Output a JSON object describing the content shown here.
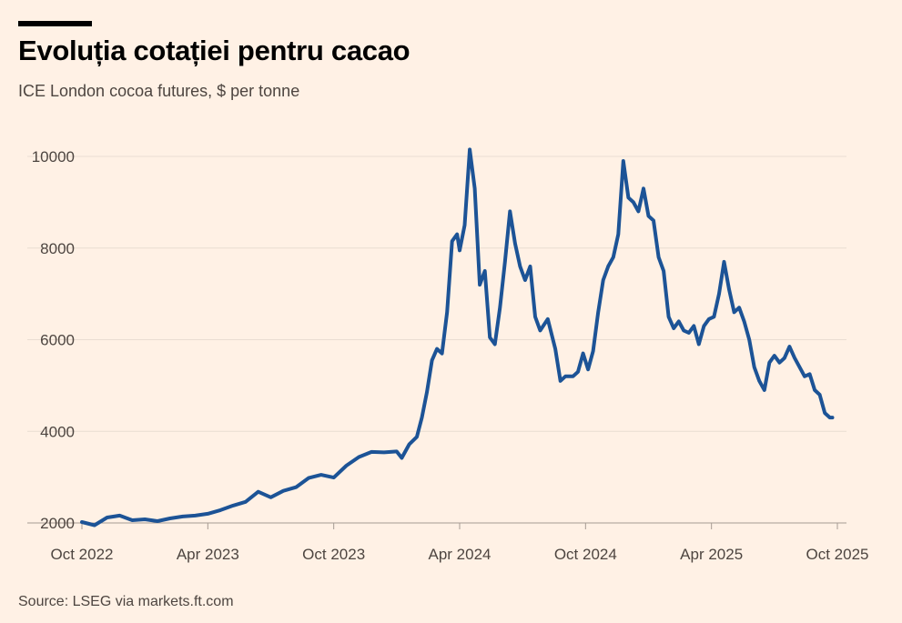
{
  "title": "Evoluția cotației pentru cacao",
  "subtitle": "ICE London cocoa futures, $ per tonne",
  "source": "Source: LSEG via markets.ft.com",
  "colors": {
    "background": "#fff1e5",
    "line": "#1c5396",
    "grid": "#e9ddd2",
    "text": "#4d4540"
  },
  "chart_data": {
    "type": "line",
    "title": "Evoluția cotației pentru cacao",
    "ylabel": "$ per tonne",
    "xlabel": "",
    "ylim": [
      2000,
      10000
    ],
    "xlim": [
      2022.75,
      2025.75
    ],
    "grid": true,
    "y_ticks": [
      10000,
      8000,
      6000,
      4000,
      2000
    ],
    "y_tick_labels": [
      "10000",
      "8000",
      "6000",
      "4000",
      "2000"
    ],
    "x_ticks": [
      2022.75,
      2023.25,
      2023.75,
      2024.25,
      2024.75,
      2025.25,
      2025.75
    ],
    "x_tick_labels": [
      "Oct 2022",
      "Apr 2023",
      "Oct 2023",
      "Apr 2024",
      "Oct 2024",
      "Apr 2025",
      "Oct 2025"
    ],
    "series": [
      {
        "name": "ICE London cocoa futures",
        "x": [
          2022.75,
          2022.8,
          2022.85,
          2022.9,
          2022.95,
          2023.0,
          2023.05,
          2023.1,
          2023.15,
          2023.2,
          2023.25,
          2023.3,
          2023.35,
          2023.4,
          2023.45,
          2023.5,
          2023.55,
          2023.6,
          2023.65,
          2023.7,
          2023.75,
          2023.8,
          2023.85,
          2023.9,
          2023.95,
          2024.0,
          2024.02,
          2024.05,
          2024.08,
          2024.1,
          2024.12,
          2024.14,
          2024.16,
          2024.18,
          2024.2,
          2024.22,
          2024.24,
          2024.25,
          2024.27,
          2024.29,
          2024.31,
          2024.33,
          2024.35,
          2024.37,
          2024.39,
          2024.41,
          2024.43,
          2024.45,
          2024.47,
          2024.49,
          2024.51,
          2024.53,
          2024.55,
          2024.57,
          2024.6,
          2024.63,
          2024.65,
          2024.67,
          2024.7,
          2024.72,
          2024.74,
          2024.76,
          2024.78,
          2024.8,
          2024.82,
          2024.84,
          2024.86,
          2024.88,
          2024.9,
          2024.92,
          2024.94,
          2024.96,
          2024.98,
          2025.0,
          2025.02,
          2025.04,
          2025.06,
          2025.08,
          2025.1,
          2025.12,
          2025.14,
          2025.16,
          2025.18,
          2025.2,
          2025.22,
          2025.24,
          2025.26,
          2025.28,
          2025.3,
          2025.32,
          2025.34,
          2025.36,
          2025.38,
          2025.4,
          2025.42,
          2025.44,
          2025.46,
          2025.48,
          2025.5,
          2025.52,
          2025.54,
          2025.56,
          2025.58,
          2025.6,
          2025.62,
          2025.64,
          2025.66,
          2025.68,
          2025.7,
          2025.72,
          2025.73
        ],
        "values": [
          2020,
          1950,
          2120,
          2160,
          2060,
          2080,
          2040,
          2100,
          2140,
          2160,
          2200,
          2280,
          2380,
          2460,
          2680,
          2560,
          2700,
          2780,
          2980,
          3050,
          2990,
          3250,
          3440,
          3550,
          3540,
          3560,
          3420,
          3720,
          3880,
          4300,
          4850,
          5550,
          5800,
          5700,
          6600,
          8150,
          8300,
          7950,
          8500,
          10150,
          9300,
          7200,
          7500,
          6050,
          5900,
          6700,
          7700,
          8800,
          8100,
          7600,
          7300,
          7600,
          6500,
          6200,
          6450,
          5800,
          5100,
          5200,
          5200,
          5300,
          5700,
          5350,
          5750,
          6600,
          7300,
          7600,
          7800,
          8300,
          9900,
          9100,
          9000,
          8800,
          9300,
          8700,
          8600,
          7800,
          7500,
          6500,
          6250,
          6400,
          6200,
          6150,
          6300,
          5900,
          6300,
          6450,
          6500,
          7000,
          7700,
          7100,
          6600,
          6700,
          6400,
          6000,
          5400,
          5100,
          4900,
          5500,
          5650,
          5500,
          5600,
          5850,
          5600,
          5400,
          5200,
          5250,
          4900,
          4800,
          4400,
          4300,
          4300
        ]
      }
    ]
  }
}
